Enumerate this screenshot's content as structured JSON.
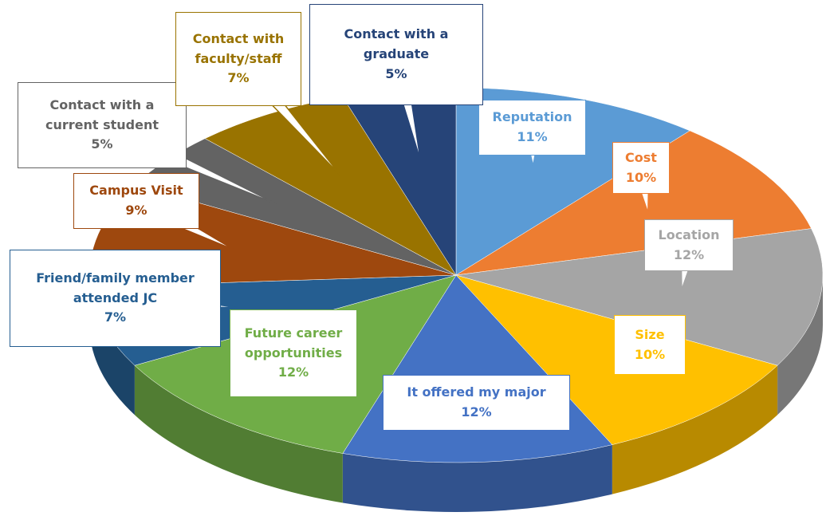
{
  "chart_data": {
    "type": "pie",
    "categories": [
      "Reputation",
      "Cost",
      "Location",
      "Size",
      "It offered my major",
      "Future career opportunities",
      "Friend/family member attended JC",
      "Campus Visit",
      "Contact with a current student",
      "Contact with faculty/staff",
      "Contact with a graduate"
    ],
    "values": [
      11,
      10,
      12,
      10,
      12,
      12,
      7,
      9,
      5,
      7,
      5
    ],
    "value_labels": [
      "11%",
      "10%",
      "12%",
      "10%",
      "12%",
      "12%",
      "7%",
      "9%",
      "5%",
      "7%",
      "5%"
    ],
    "colors": [
      "#5b9bd5",
      "#ed7d31",
      "#a5a5a5",
      "#ffc000",
      "#4472c4",
      "#70ad47",
      "#255e91",
      "#9e480e",
      "#636363",
      "#997300",
      "#264478"
    ]
  }
}
